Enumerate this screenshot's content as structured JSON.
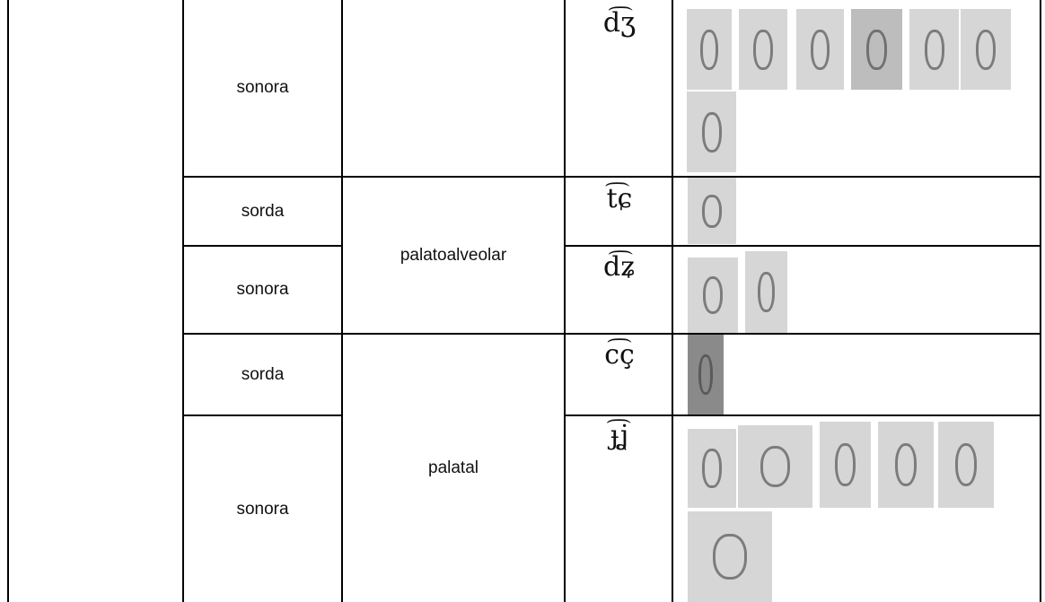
{
  "table": {
    "rows": [
      {
        "voicing": "sonora",
        "symbol": "d͡ʒ"
      },
      {
        "voicing": "sorda",
        "symbol": "t͡ɕ"
      },
      {
        "voicing": "sonora",
        "symbol": "d͡ʑ"
      },
      {
        "voicing": "sorda",
        "symbol": "c͡ç"
      },
      {
        "voicing": "sonora",
        "symbol": "ɟ͡ʝ"
      }
    ],
    "places": [
      "palatoalveolar",
      "palatal"
    ]
  }
}
